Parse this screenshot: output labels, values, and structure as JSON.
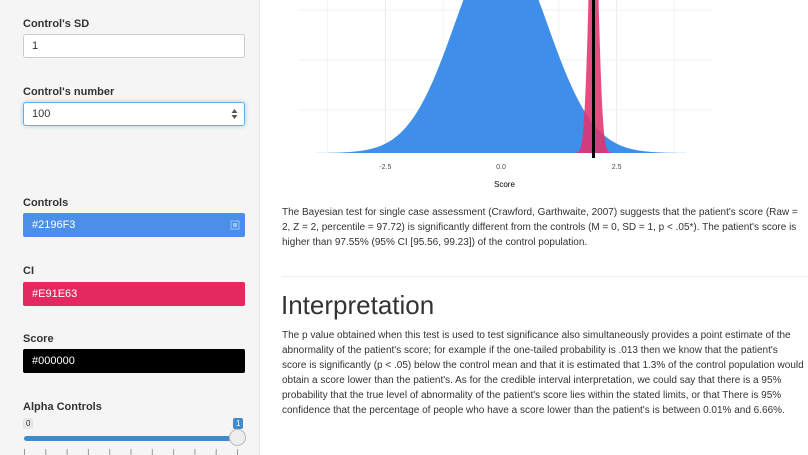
{
  "sidebar": {
    "controls_sd": {
      "label": "Control's SD",
      "value": "1"
    },
    "controls_number": {
      "label": "Control's number",
      "value": "100"
    },
    "controls_color": {
      "label": "Controls",
      "value": "#2196F3",
      "color": "#4B8FE8"
    },
    "ci_color": {
      "label": "CI",
      "value": "#E91E63",
      "color": "#E32A5E"
    },
    "score_color": {
      "label": "Score",
      "value": "#000000",
      "color": "#000000"
    },
    "alpha_controls": {
      "label": "Alpha Controls",
      "min_label": "0",
      "max_label": "1",
      "value": 1
    }
  },
  "chart_data": {
    "type": "area",
    "xlabel": "Score",
    "x_ticks": [
      "-2.5",
      "0.0",
      "2.5"
    ],
    "score_line": 2,
    "series": [
      {
        "distribution": "normal",
        "mean": 0,
        "sd": 1,
        "color": "#3f8eea"
      },
      {
        "distribution": "normal",
        "mean": 2,
        "sd": 0.1,
        "color": "#e3336e"
      }
    ]
  },
  "result": {
    "paragraph": "The Bayesian test for single case assessment (Crawford, Garthwaite, 2007) suggests that the patient's score (Raw = 2, Z = 2, percentile = 97.72) is significantly different from the controls (M = 0, SD = 1, p < .05*). The patient's score is higher than 97.55% (95% CI [95.56, 99.23]) of the control population."
  },
  "interpretation": {
    "heading": "Interpretation",
    "paragraph": "The p value obtained when this test is used to test significance also simultaneously provides a point estimate of the abnormality of the patient's score; for example if the one-tailed probability is .013 then we know that the patient's score is significantly (p < .05) below the control mean and that it is estimated that 1.3% of the control population would obtain a score lower than the patient's. As for the credible interval interpretation, we could say that there is a 95% probability that the true level of abnormality of the patient's score lies within the stated limits, or that There is 95% confidence that the percentage of people who have a score lower than the patient's is between 0.01% and 6.66%."
  }
}
